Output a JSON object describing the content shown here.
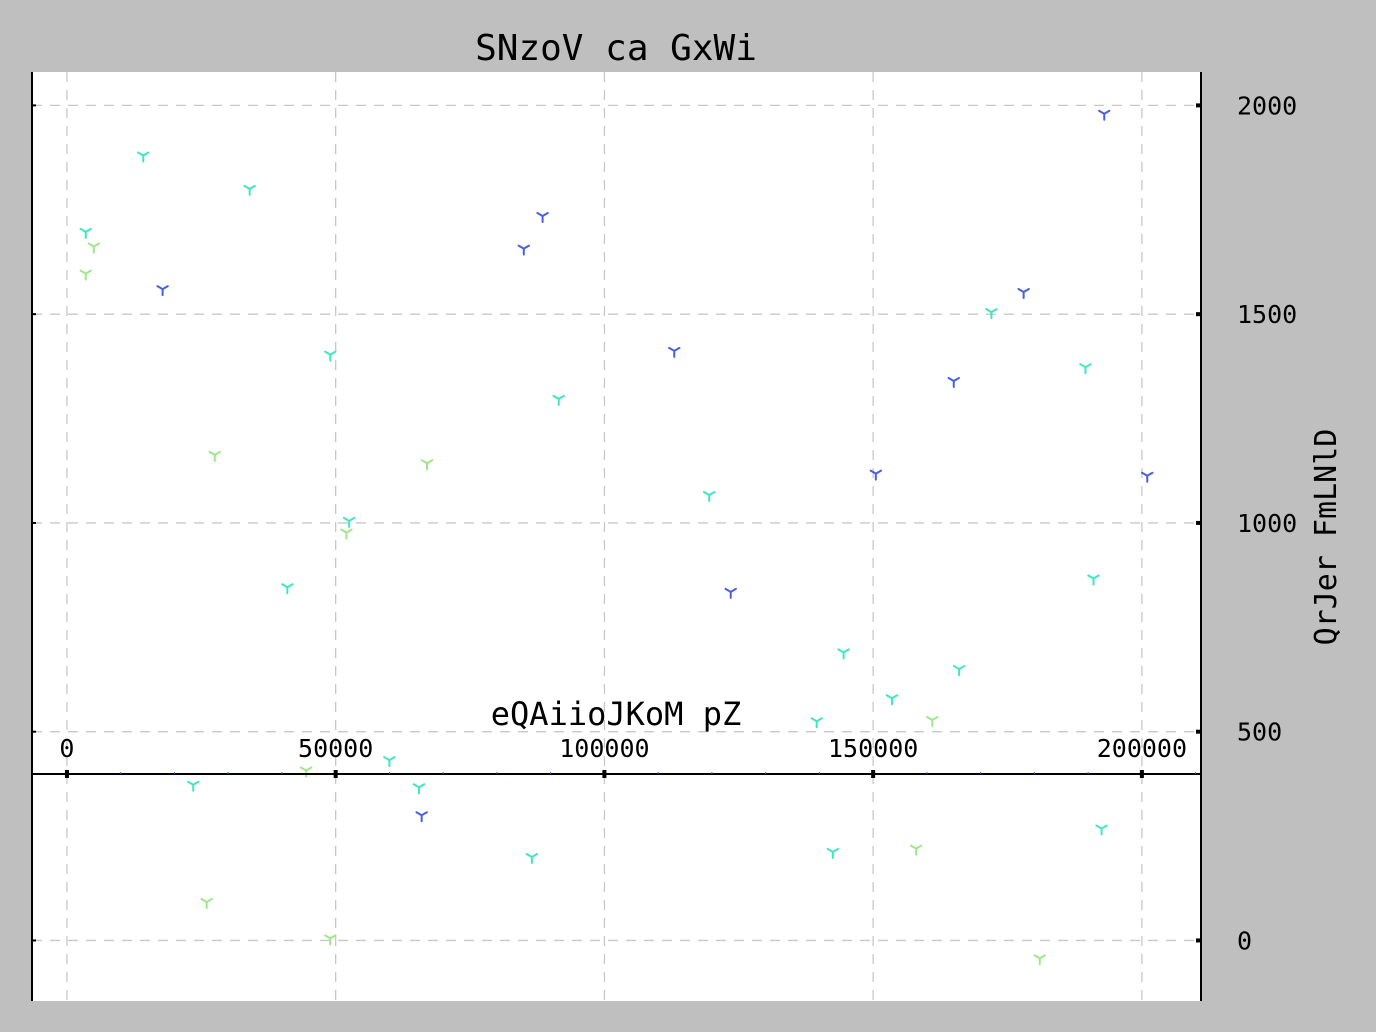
{
  "chart_data": {
    "type": "scatter",
    "title": "SNzoV ca  GxWi",
    "xlabel": "eQAiioJKoM pZ",
    "ylabel": "QrJer  FmLNlD",
    "xlim": [
      -6500,
      211000
    ],
    "ylim": [
      -145,
      2080
    ],
    "xticks": [
      0,
      50000,
      100000,
      150000,
      200000
    ],
    "xtick_labels": [
      "0",
      "50000",
      "100000",
      "150000",
      "200000"
    ],
    "yticks": [
      0,
      500,
      1000,
      1500,
      2000
    ],
    "ytick_labels": [
      "0",
      "500",
      "1000",
      "1500",
      "2000"
    ],
    "x_axis_position": "inside at y = 398",
    "y_axis_position": "right",
    "grid": true,
    "marker": "tri_down",
    "colors": {
      "blue": "#4a5fe0",
      "teal": "#3de8c0",
      "green": "#9ee88a",
      "background": "#bfbfbf",
      "plot": "#ffffff"
    },
    "series": [
      {
        "color": "#4a5fe0",
        "points": [
          [
            17800,
            1560
          ],
          [
            85000,
            1657
          ],
          [
            88500,
            1735
          ],
          [
            113000,
            1412
          ],
          [
            123500,
            835
          ],
          [
            150500,
            1118
          ],
          [
            165000,
            1340
          ],
          [
            178000,
            1553
          ],
          [
            193000,
            1980
          ],
          [
            201000,
            1113
          ],
          [
            66000,
            300
          ]
        ]
      },
      {
        "color": "#3de8c0",
        "points": [
          [
            3500,
            1697
          ],
          [
            14200,
            1880
          ],
          [
            34000,
            1800
          ],
          [
            49000,
            1403
          ],
          [
            52500,
            1005
          ],
          [
            41000,
            846
          ],
          [
            91500,
            1297
          ],
          [
            119500,
            1067
          ],
          [
            60000,
            432
          ],
          [
            65500,
            367
          ],
          [
            23500,
            373
          ],
          [
            86500,
            200
          ],
          [
            139500,
            525
          ],
          [
            144500,
            690
          ],
          [
            153500,
            580
          ],
          [
            166000,
            650
          ],
          [
            172000,
            1505
          ],
          [
            189500,
            1373
          ],
          [
            191000,
            867
          ],
          [
            142500,
            212
          ],
          [
            192500,
            268
          ]
        ]
      },
      {
        "color": "#9ee88a",
        "points": [
          [
            5000,
            1662
          ],
          [
            3500,
            1597
          ],
          [
            27500,
            1163
          ],
          [
            67000,
            1143
          ],
          [
            52000,
            977
          ],
          [
            44500,
            407
          ],
          [
            26000,
            92
          ],
          [
            49000,
            5
          ],
          [
            161000,
            528
          ],
          [
            158000,
            220
          ],
          [
            181000,
            -43
          ]
        ]
      }
    ]
  }
}
